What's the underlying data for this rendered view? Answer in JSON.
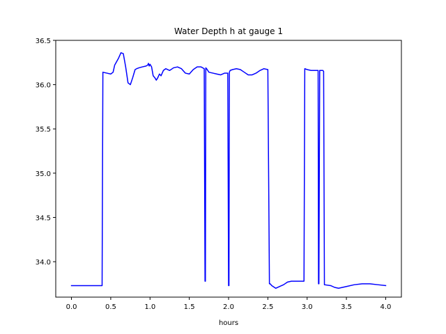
{
  "chart_data": {
    "type": "line",
    "title": "Water Depth h at gauge 1",
    "xlabel": "hours",
    "ylabel": "",
    "xlim": [
      -0.2,
      4.2
    ],
    "ylim": [
      33.6,
      36.5
    ],
    "x_ticks": [
      0.0,
      0.5,
      1.0,
      1.5,
      2.0,
      2.5,
      3.0,
      3.5,
      4.0
    ],
    "x_tick_labels": [
      "0.0",
      "0.5",
      "1.0",
      "1.5",
      "2.0",
      "2.5",
      "3.0",
      "3.5",
      "4.0"
    ],
    "y_ticks": [
      34.0,
      34.5,
      35.0,
      35.5,
      36.0,
      36.5
    ],
    "y_tick_labels": [
      "34.0",
      "34.5",
      "35.0",
      "35.5",
      "36.0",
      "36.5"
    ],
    "grid": false,
    "series": [
      {
        "color": "#0000ff",
        "x": [
          0.0,
          0.2,
          0.39,
          0.4,
          0.45,
          0.5,
          0.53,
          0.55,
          0.6,
          0.63,
          0.66,
          0.69,
          0.72,
          0.75,
          0.78,
          0.81,
          0.83,
          0.86,
          0.9,
          0.95,
          0.97,
          0.98,
          0.99,
          1.0,
          1.02,
          1.04,
          1.06,
          1.08,
          1.1,
          1.12,
          1.14,
          1.17,
          1.2,
          1.25,
          1.3,
          1.35,
          1.4,
          1.45,
          1.5,
          1.55,
          1.6,
          1.65,
          1.69,
          1.7,
          1.705,
          1.71,
          1.72,
          1.75,
          1.8,
          1.85,
          1.9,
          1.95,
          1.99,
          2.0,
          2.005,
          2.01,
          2.02,
          2.05,
          2.1,
          2.15,
          2.2,
          2.25,
          2.3,
          2.35,
          2.4,
          2.45,
          2.5,
          2.52,
          2.53,
          2.55,
          2.6,
          2.65,
          2.7,
          2.75,
          2.8,
          2.85,
          2.9,
          2.96,
          2.97,
          3.0,
          3.05,
          3.1,
          3.14,
          3.145,
          3.15,
          3.16,
          3.2,
          3.21,
          3.22,
          3.3,
          3.35,
          3.4,
          3.5,
          3.6,
          3.7,
          3.8,
          3.9,
          4.0
        ],
        "y": [
          33.73,
          33.73,
          33.73,
          36.14,
          36.13,
          36.12,
          36.14,
          36.22,
          36.3,
          36.36,
          36.35,
          36.2,
          36.02,
          36.0,
          36.08,
          36.17,
          36.18,
          36.19,
          36.2,
          36.21,
          36.22,
          36.24,
          36.21,
          36.23,
          36.2,
          36.1,
          36.08,
          36.05,
          36.08,
          36.12,
          36.1,
          36.16,
          36.18,
          36.16,
          36.19,
          36.2,
          36.18,
          36.13,
          36.12,
          36.17,
          36.2,
          36.2,
          36.18,
          33.78,
          33.78,
          36.19,
          36.18,
          36.14,
          36.13,
          36.12,
          36.11,
          36.13,
          36.13,
          33.73,
          33.73,
          36.14,
          36.16,
          36.17,
          36.18,
          36.17,
          36.14,
          36.11,
          36.11,
          36.13,
          36.16,
          36.18,
          36.17,
          33.75,
          33.75,
          33.73,
          33.7,
          33.72,
          33.74,
          33.77,
          33.78,
          33.78,
          33.78,
          33.78,
          36.18,
          36.17,
          36.16,
          36.16,
          36.16,
          33.75,
          33.75,
          36.16,
          36.16,
          36.15,
          33.74,
          33.73,
          33.71,
          33.7,
          33.72,
          33.74,
          33.75,
          33.75,
          33.74,
          33.73
        ]
      }
    ]
  }
}
